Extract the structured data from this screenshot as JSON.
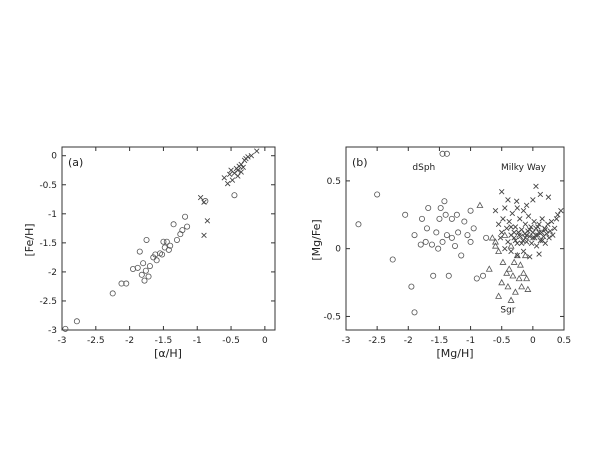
{
  "chart_data": [
    {
      "type": "scatter",
      "panel_label": "(a)",
      "title": "",
      "xlabel": "[α/H]",
      "ylabel": "[Fe/H]",
      "xlim": [
        -3,
        0.15
      ],
      "ylim": [
        -3,
        0.15
      ],
      "xticks": [
        -3,
        -2.5,
        -2,
        -1.5,
        -1,
        -0.5,
        0
      ],
      "yticks": [
        -3,
        -2.5,
        -2,
        -1.5,
        -1,
        -0.5,
        0
      ],
      "xtick_labels": [
        "-3",
        "-2.5",
        "-2",
        "-1.5",
        "-1",
        "-0.5",
        "0"
      ],
      "ytick_labels": [
        "-3",
        "-2.5",
        "-2",
        "-1.5",
        "-1",
        "-0.5",
        "0"
      ],
      "grid": false,
      "series": [
        {
          "marker": "circle",
          "points": [
            [
              -2.95,
              -2.98
            ],
            [
              -2.78,
              -2.85
            ],
            [
              -2.25,
              -2.37
            ],
            [
              -2.12,
              -2.2
            ],
            [
              -2.05,
              -2.2
            ],
            [
              -1.95,
              -1.95
            ],
            [
              -1.88,
              -1.93
            ],
            [
              -1.85,
              -1.65
            ],
            [
              -1.82,
              -2.05
            ],
            [
              -1.8,
              -1.85
            ],
            [
              -1.78,
              -2.15
            ],
            [
              -1.76,
              -1.98
            ],
            [
              -1.75,
              -1.45
            ],
            [
              -1.72,
              -2.08
            ],
            [
              -1.7,
              -1.9
            ],
            [
              -1.65,
              -1.75
            ],
            [
              -1.62,
              -1.7
            ],
            [
              -1.6,
              -1.8
            ],
            [
              -1.55,
              -1.68
            ],
            [
              -1.52,
              -1.7
            ],
            [
              -1.5,
              -1.48
            ],
            [
              -1.48,
              -1.58
            ],
            [
              -1.45,
              -1.48
            ],
            [
              -1.42,
              -1.62
            ],
            [
              -1.4,
              -1.55
            ],
            [
              -1.35,
              -1.18
            ],
            [
              -1.3,
              -1.45
            ],
            [
              -1.25,
              -1.35
            ],
            [
              -1.22,
              -1.28
            ],
            [
              -1.18,
              -1.05
            ],
            [
              -1.15,
              -1.22
            ],
            [
              -0.88,
              -0.78
            ],
            [
              -0.45,
              -0.68
            ]
          ]
        },
        {
          "marker": "cross",
          "points": [
            [
              -0.95,
              -0.72
            ],
            [
              -0.9,
              -0.8
            ],
            [
              -0.85,
              -1.12
            ],
            [
              -0.9,
              -1.37
            ],
            [
              -0.6,
              -0.38
            ],
            [
              -0.55,
              -0.48
            ],
            [
              -0.52,
              -0.32
            ],
            [
              -0.5,
              -0.25
            ],
            [
              -0.48,
              -0.42
            ],
            [
              -0.45,
              -0.3
            ],
            [
              -0.42,
              -0.22
            ],
            [
              -0.4,
              -0.35
            ],
            [
              -0.38,
              -0.18
            ],
            [
              -0.35,
              -0.28
            ],
            [
              -0.32,
              -0.2
            ],
            [
              -0.3,
              -0.08
            ],
            [
              -0.28,
              -0.05
            ],
            [
              -0.25,
              -0.02
            ],
            [
              -0.2,
              0.0
            ],
            [
              -0.12,
              0.08
            ],
            [
              -0.4,
              -0.25
            ],
            [
              -0.35,
              -0.15
            ]
          ]
        }
      ]
    },
    {
      "type": "scatter",
      "panel_label": "(b)",
      "title": "",
      "xlabel": "[Mg/H]",
      "ylabel": "[Mg/Fe]",
      "xlim": [
        -3,
        0.5
      ],
      "ylim": [
        -0.6,
        0.75
      ],
      "xticks": [
        -3,
        -2.5,
        -2,
        -1.5,
        -1,
        -0.5,
        0,
        0.5
      ],
      "yticks": [
        -0.5,
        0,
        0.5
      ],
      "xtick_labels": [
        "-3",
        "-2.5",
        "-2",
        "-1.5",
        "-1",
        "-0.5",
        "0",
        "0.5"
      ],
      "ytick_labels": [
        "-0.5",
        "0",
        "0.5"
      ],
      "grid": false,
      "annotations": [
        {
          "text": "dSph",
          "x": -1.75,
          "y": 0.58
        },
        {
          "text": "Milky Way",
          "x": -0.15,
          "y": 0.58
        },
        {
          "text": "Sgr",
          "x": -0.4,
          "y": -0.47
        }
      ],
      "series": [
        {
          "marker": "circle",
          "points": [
            [
              -2.8,
              0.18
            ],
            [
              -2.5,
              0.4
            ],
            [
              -2.25,
              -0.08
            ],
            [
              -2.05,
              0.25
            ],
            [
              -1.95,
              -0.28
            ],
            [
              -1.9,
              -0.47
            ],
            [
              -1.9,
              0.1
            ],
            [
              -1.8,
              0.03
            ],
            [
              -1.78,
              0.22
            ],
            [
              -1.72,
              0.05
            ],
            [
              -1.7,
              0.15
            ],
            [
              -1.68,
              0.3
            ],
            [
              -1.62,
              0.03
            ],
            [
              -1.6,
              -0.2
            ],
            [
              -1.55,
              0.12
            ],
            [
              -1.52,
              0.0
            ],
            [
              -1.5,
              0.22
            ],
            [
              -1.48,
              0.3
            ],
            [
              -1.45,
              0.05
            ],
            [
              -1.42,
              0.35
            ],
            [
              -1.4,
              0.25
            ],
            [
              -1.38,
              0.1
            ],
            [
              -1.35,
              -0.2
            ],
            [
              -1.3,
              0.22
            ],
            [
              -1.3,
              0.08
            ],
            [
              -1.25,
              0.02
            ],
            [
              -1.22,
              0.25
            ],
            [
              -1.2,
              0.12
            ],
            [
              -1.15,
              -0.05
            ],
            [
              -1.1,
              0.2
            ],
            [
              -1.05,
              0.1
            ],
            [
              -1.0,
              0.28
            ],
            [
              -1.0,
              0.05
            ],
            [
              -0.95,
              0.15
            ],
            [
              -0.9,
              -0.22
            ],
            [
              -0.8,
              -0.2
            ],
            [
              -0.75,
              0.08
            ],
            [
              -1.45,
              0.7
            ],
            [
              -1.38,
              0.7
            ]
          ]
        },
        {
          "marker": "triangle",
          "points": [
            [
              -0.85,
              0.32
            ],
            [
              -0.65,
              0.08
            ],
            [
              -0.6,
              0.05
            ],
            [
              -0.55,
              -0.02
            ],
            [
              -0.5,
              -0.25
            ],
            [
              -0.48,
              -0.1
            ],
            [
              -0.45,
              0.1
            ],
            [
              -0.42,
              -0.18
            ],
            [
              -0.4,
              -0.28
            ],
            [
              -0.38,
              -0.15
            ],
            [
              -0.35,
              0.02
            ],
            [
              -0.32,
              -0.2
            ],
            [
              -0.3,
              -0.1
            ],
            [
              -0.28,
              -0.32
            ],
            [
              -0.25,
              -0.05
            ],
            [
              -0.22,
              -0.22
            ],
            [
              -0.2,
              -0.12
            ],
            [
              -0.18,
              -0.28
            ],
            [
              -0.15,
              -0.18
            ],
            [
              -0.12,
              -0.05
            ],
            [
              -0.1,
              -0.22
            ],
            [
              -0.08,
              -0.3
            ],
            [
              -0.35,
              -0.38
            ],
            [
              -0.55,
              -0.35
            ],
            [
              -0.6,
              0.02
            ],
            [
              -0.7,
              -0.15
            ]
          ]
        },
        {
          "marker": "cross",
          "points": [
            [
              -0.6,
              0.28
            ],
            [
              -0.55,
              0.18
            ],
            [
              -0.52,
              0.08
            ],
            [
              -0.5,
              0.12
            ],
            [
              -0.48,
              0.22
            ],
            [
              -0.45,
              0.3
            ],
            [
              -0.42,
              0.15
            ],
            [
              -0.4,
              0.05
            ],
            [
              -0.38,
              0.2
            ],
            [
              -0.35,
              0.1
            ],
            [
              -0.33,
              0.26
            ],
            [
              -0.3,
              0.08
            ],
            [
              -0.28,
              0.16
            ],
            [
              -0.26,
              0.35
            ],
            [
              -0.25,
              0.04
            ],
            [
              -0.23,
              0.12
            ],
            [
              -0.21,
              0.22
            ],
            [
              -0.2,
              0.09
            ],
            [
              -0.18,
              0.14
            ],
            [
              -0.16,
              0.06
            ],
            [
              -0.15,
              0.28
            ],
            [
              -0.13,
              0.11
            ],
            [
              -0.12,
              0.18
            ],
            [
              -0.1,
              0.05
            ],
            [
              -0.08,
              0.13
            ],
            [
              -0.07,
              0.24
            ],
            [
              -0.05,
              0.09
            ],
            [
              -0.03,
              0.16
            ],
            [
              -0.02,
              0.04
            ],
            [
              0.0,
              0.12
            ],
            [
              0.02,
              0.2
            ],
            [
              0.03,
              0.08
            ],
            [
              0.05,
              0.15
            ],
            [
              0.06,
              0.02
            ],
            [
              0.08,
              0.1
            ],
            [
              0.1,
              0.18
            ],
            [
              0.12,
              0.06
            ],
            [
              0.14,
              0.12
            ],
            [
              0.15,
              0.22
            ],
            [
              0.17,
              0.09
            ],
            [
              0.19,
              0.15
            ],
            [
              0.2,
              0.04
            ],
            [
              0.22,
              0.11
            ],
            [
              0.24,
              0.18
            ],
            [
              0.26,
              0.08
            ],
            [
              0.28,
              0.13
            ],
            [
              0.3,
              0.2
            ],
            [
              0.32,
              0.1
            ],
            [
              0.35,
              0.15
            ],
            [
              0.38,
              0.22
            ],
            [
              0.4,
              0.25
            ],
            [
              0.45,
              0.28
            ],
            [
              -0.35,
              0.16
            ],
            [
              -0.3,
              0.12
            ],
            [
              -0.22,
              0.1
            ],
            [
              -0.18,
              0.04
            ],
            [
              -0.1,
              0.1
            ],
            [
              -0.05,
              0.14
            ],
            [
              0.0,
              0.08
            ],
            [
              0.05,
              0.1
            ],
            [
              0.1,
              0.12
            ],
            [
              -0.25,
              0.3
            ],
            [
              -0.1,
              0.32
            ],
            [
              0.0,
              0.36
            ],
            [
              0.05,
              0.46
            ],
            [
              -0.4,
              0.36
            ],
            [
              -0.5,
              0.42
            ],
            [
              0.25,
              0.38
            ],
            [
              0.12,
              0.4
            ],
            [
              -0.15,
              -0.02
            ],
            [
              -0.25,
              -0.05
            ],
            [
              -0.05,
              -0.06
            ],
            [
              0.1,
              -0.04
            ],
            [
              -0.35,
              -0.02
            ],
            [
              -0.45,
              0.0
            ],
            [
              0.2,
              0.14
            ],
            [
              -0.12,
              0.08
            ],
            [
              -0.28,
              0.06
            ],
            [
              0.08,
              0.16
            ],
            [
              0.15,
              0.06
            ]
          ]
        }
      ]
    }
  ]
}
